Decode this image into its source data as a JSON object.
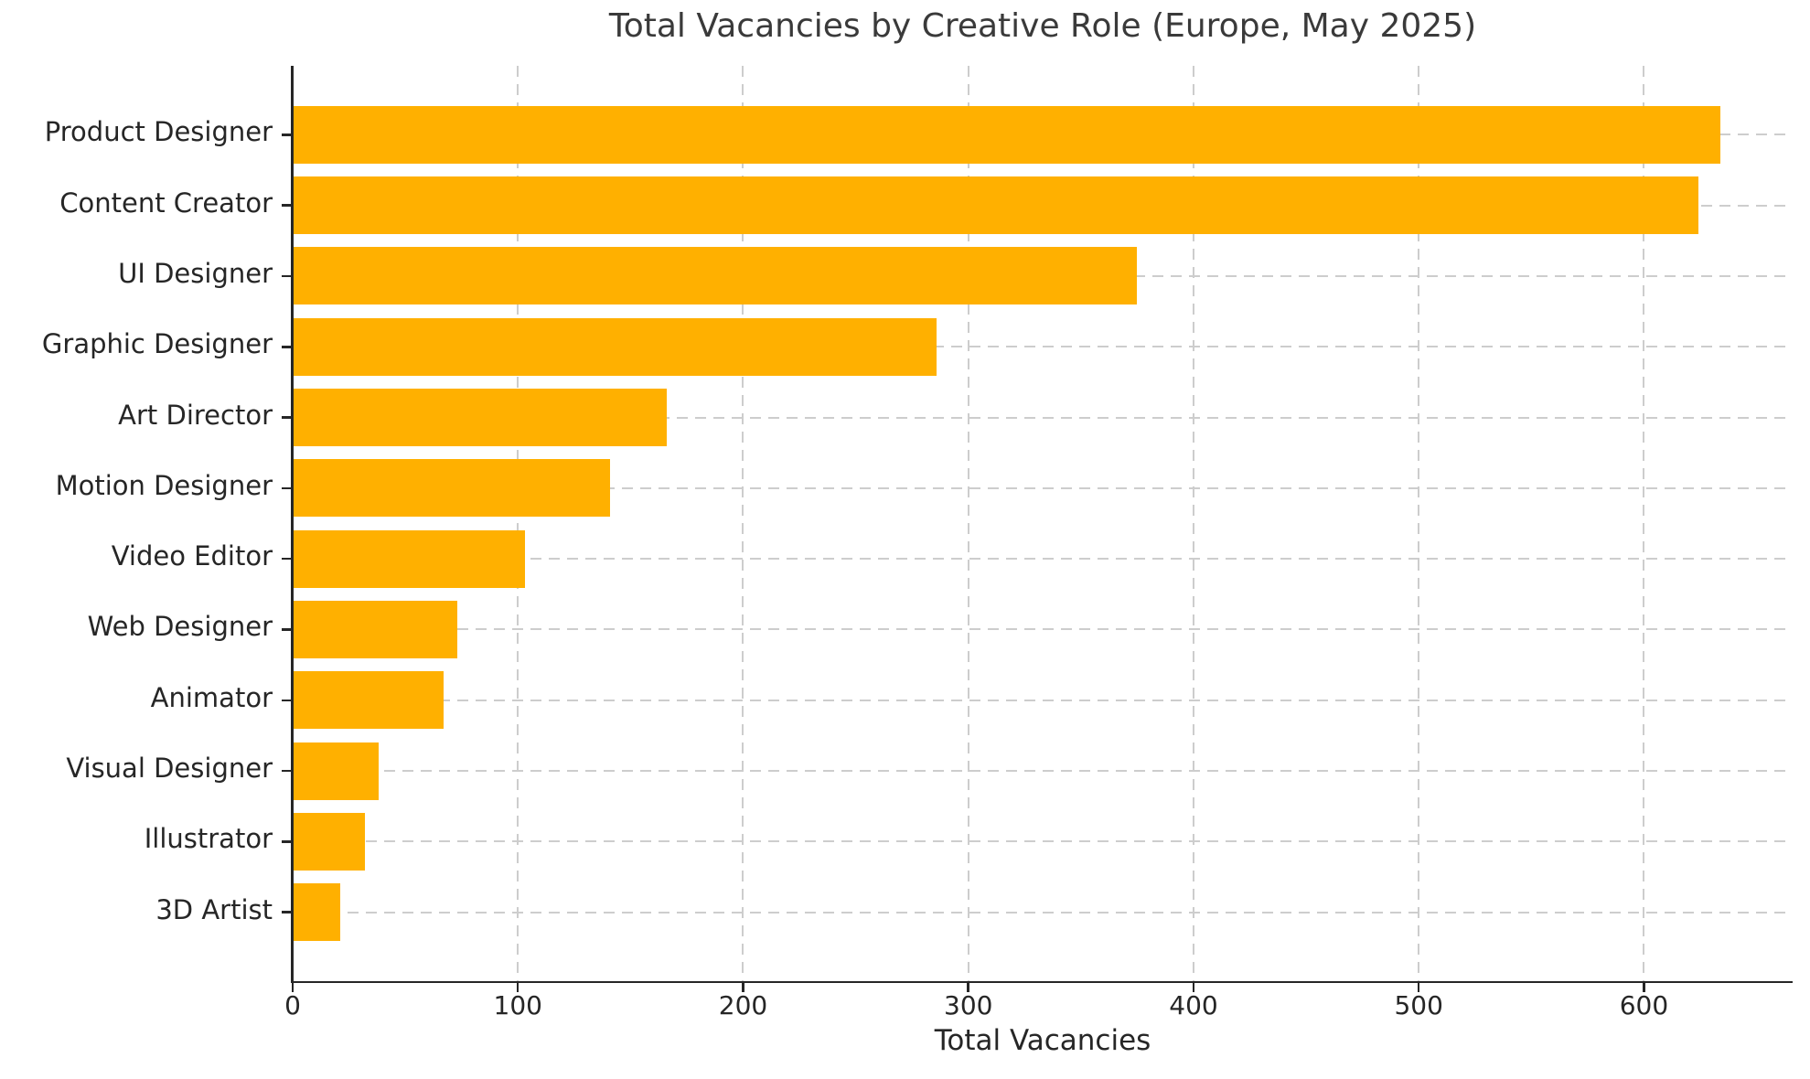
{
  "chart_data": {
    "type": "bar",
    "orientation": "horizontal",
    "title": "Total Vacancies by Creative Role (Europe, May 2025)",
    "xlabel": "Total Vacancies",
    "ylabel": "",
    "categories": [
      "Product Designer",
      "Content Creator",
      "UI Designer",
      "Graphic Designer",
      "Art Director",
      "Motion Designer",
      "Video Editor",
      "Web Designer",
      "Animator",
      "Visual Designer",
      "Illustrator",
      "3D Artist"
    ],
    "values": [
      634,
      624,
      375,
      286,
      166,
      141,
      103,
      73,
      67,
      38,
      32,
      21
    ],
    "x_ticks": [
      0,
      100,
      200,
      300,
      400,
      500,
      600
    ],
    "xlim": [
      0,
      666
    ],
    "grid": "dashed-both-axes",
    "legend": "none",
    "bar_color": "#FFB000",
    "title_color": "#3a3a3a",
    "tick_label_color": "#262626",
    "grid_color": "#cdcdcd",
    "spine_color": "#262626"
  }
}
